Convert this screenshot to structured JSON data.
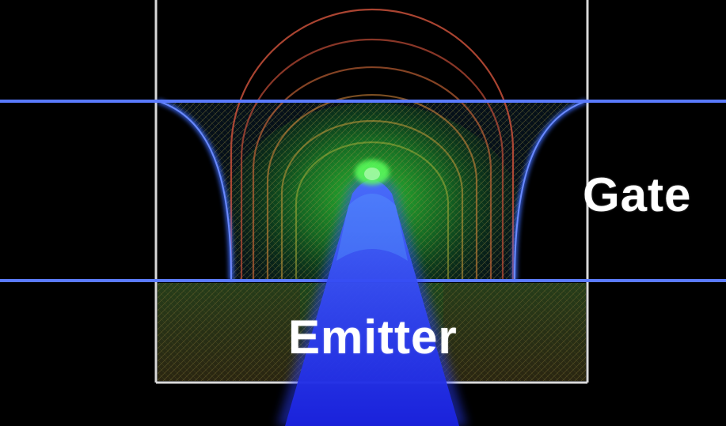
{
  "labels": {
    "gate": "Gate",
    "emitter": "Emitter"
  },
  "colors": {
    "background": "#000000",
    "gate_electrode": "#3c5cff",
    "emitter": "#1f2cff",
    "equipotential": "#c8503a",
    "field_green": "#2fd23a",
    "frame": "#d9d9d9"
  }
}
